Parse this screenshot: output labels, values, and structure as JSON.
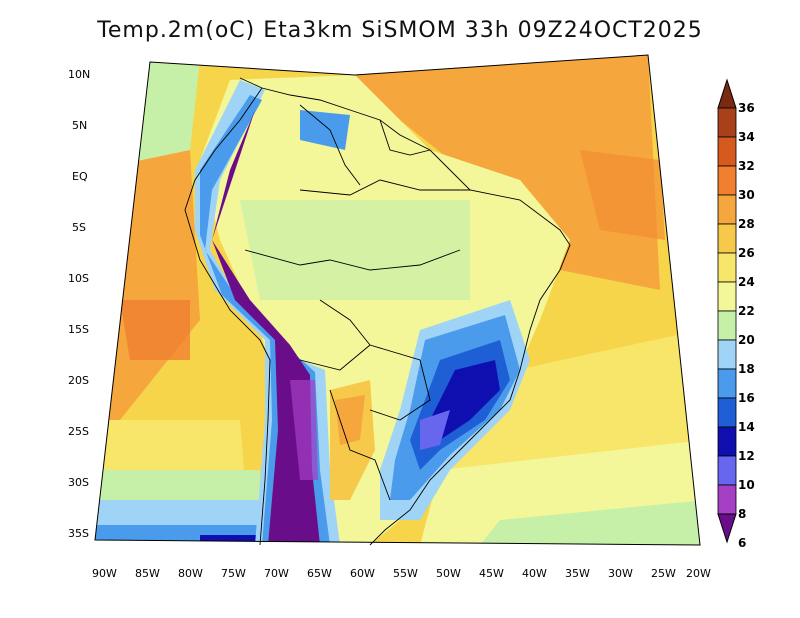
{
  "title": "Temp.2m(oC) Eta3km SiSMOM 33h 09Z24OCT2025",
  "lat_labels": [
    "10N",
    "5N",
    "EQ",
    "5S",
    "10S",
    "15S",
    "20S",
    "25S",
    "30S",
    "35S"
  ],
  "lon_labels": [
    "90W",
    "85W",
    "80W",
    "75W",
    "70W",
    "65W",
    "60W",
    "55W",
    "50W",
    "45W",
    "40W",
    "35W",
    "30W",
    "25W",
    "20W"
  ],
  "colorbar": {
    "levels": [
      "6",
      "8",
      "10",
      "12",
      "14",
      "16",
      "18",
      "20",
      "22",
      "24",
      "26",
      "28",
      "30",
      "32",
      "34",
      "36"
    ],
    "colors": [
      "#6a0d8a",
      "#a53fc4",
      "#6666ee",
      "#0f0fb0",
      "#1f5fd6",
      "#4b9bec",
      "#9fd4f7",
      "#c6f0a8",
      "#f4f69a",
      "#f7e66a",
      "#f7c94a",
      "#f5a63c",
      "#f08030",
      "#d65a1e",
      "#a8401a",
      "#7a2a12"
    ]
  }
}
